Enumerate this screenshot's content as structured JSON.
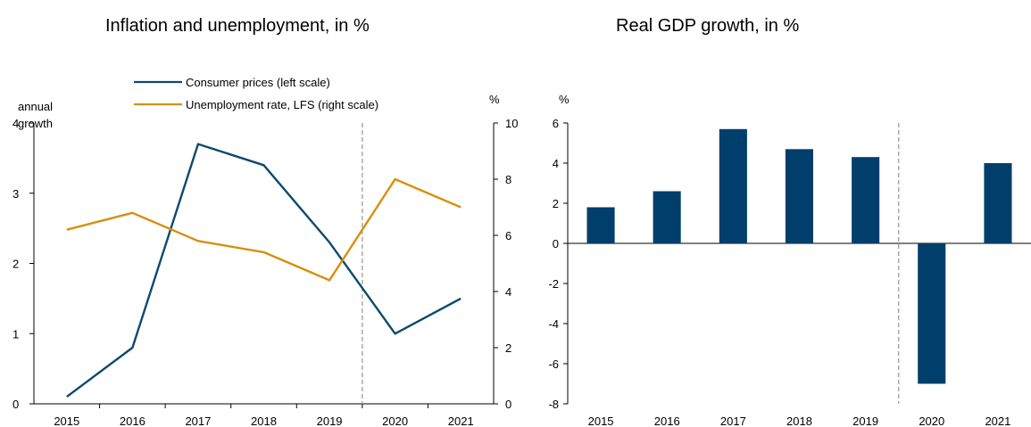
{
  "chart_data": [
    {
      "type": "line",
      "title": "Inflation and unemployment, in %",
      "left_axis_label": "annual growth",
      "left_axis_label_lines": [
        "annual",
        "growth"
      ],
      "right_axis_label": "%",
      "categories": [
        "2015",
        "2016",
        "2017",
        "2018",
        "2019",
        "2020",
        "2021"
      ],
      "ylim_left": [
        0,
        4
      ],
      "yticks_left": [
        "0",
        "1",
        "2",
        "3",
        "4"
      ],
      "ylim_right": [
        0,
        10
      ],
      "yticks_right": [
        "0",
        "2",
        "4",
        "6",
        "8",
        "10"
      ],
      "forecast_divider_after": "2019",
      "legend_position": "top",
      "series": [
        {
          "name": "Consumer prices (left scale)",
          "axis": "left",
          "color": "#0b4a6f",
          "values": [
            0.1,
            0.8,
            3.7,
            3.4,
            2.3,
            1.0,
            1.5
          ]
        },
        {
          "name": "Unemployment rate, LFS (right scale)",
          "axis": "right",
          "color": "#d68f0d",
          "values": [
            6.2,
            6.8,
            5.8,
            5.4,
            4.4,
            8.0,
            7.0
          ]
        }
      ]
    },
    {
      "type": "bar",
      "title": "Real GDP growth, in %",
      "ylabel": "%",
      "categories": [
        "2015",
        "2016",
        "2017",
        "2018",
        "2019",
        "2020",
        "2021"
      ],
      "values": [
        1.8,
        2.6,
        5.7,
        4.7,
        4.3,
        -7.0,
        4.0
      ],
      "color": "#003f6c",
      "ylim": [
        -8,
        6
      ],
      "yticks": [
        "-8",
        "-6",
        "-4",
        "-2",
        "0",
        "2",
        "4",
        "6"
      ],
      "forecast_divider_after": "2019"
    }
  ]
}
